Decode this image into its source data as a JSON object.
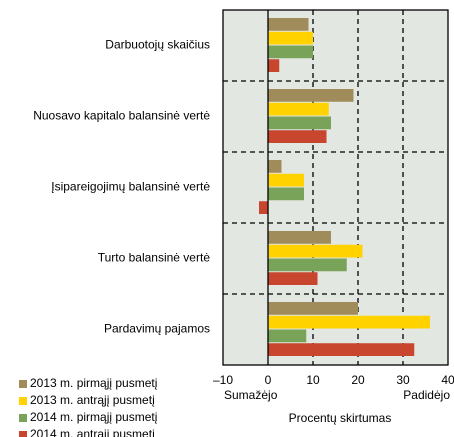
{
  "chart_data": {
    "type": "hbar",
    "categories": [
      "Darbuotojų skaičius",
      "Nuosavo kapitalo balansinė vertė",
      "Įsipareigojimų balansinė vertė",
      "Turto balansinė vertė",
      "Pardavimų pajamos"
    ],
    "series": [
      {
        "name": "2013 m. pirmąjį pusmetį",
        "color": "#a08c5b",
        "values": [
          9,
          19,
          3,
          14,
          20
        ]
      },
      {
        "name": "2013 m. antrąjį pusmetį",
        "color": "#ffd200",
        "values": [
          10,
          13.5,
          8,
          21,
          36
        ]
      },
      {
        "name": "2014 m. pirmąjį pusmetį",
        "color": "#7aa35a",
        "values": [
          10,
          14,
          8,
          17.5,
          8.5
        ]
      },
      {
        "name": "2014 m. antrąjį pusmetį",
        "color": "#c8462d",
        "values": [
          2.5,
          13,
          -2,
          11,
          32.5
        ]
      }
    ],
    "xlim": [
      -10,
      40
    ],
    "xticks": [
      {
        "value": -10,
        "label": "–10"
      },
      0,
      10,
      20,
      30,
      40
    ],
    "xlabel": "Procentų skirtumas",
    "annotations": [
      "Sumažėjo",
      "Padidėjo"
    ],
    "grid": true,
    "legend": "bottom-left"
  }
}
